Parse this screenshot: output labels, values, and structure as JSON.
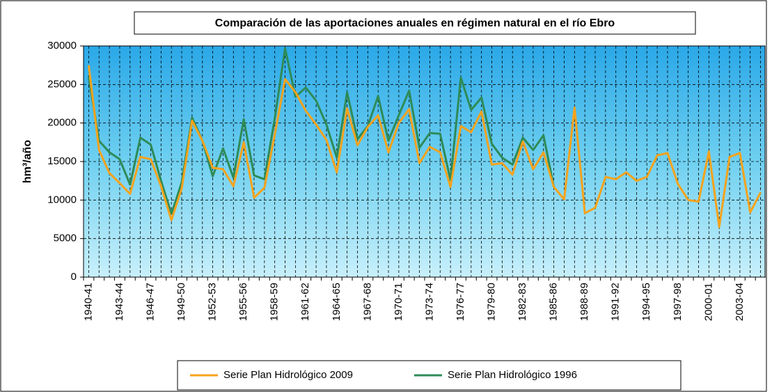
{
  "chart_data": {
    "type": "line",
    "title": "Comparación de las aportaciones anuales en régimen natural en el río Ebro",
    "y_label": "hm³/año",
    "categories": [
      "1940-41",
      null,
      null,
      "1943-44",
      null,
      null,
      "1946-47",
      null,
      null,
      "1949-50",
      null,
      null,
      "1952-53",
      null,
      null,
      "1955-56",
      null,
      null,
      "1958-59",
      null,
      null,
      "1961-62",
      null,
      null,
      "1964-65",
      null,
      null,
      "1967-68",
      null,
      null,
      "1970-71",
      null,
      null,
      "1973-74",
      null,
      null,
      "1976-77",
      null,
      null,
      "1979-80",
      null,
      null,
      "1982-83",
      null,
      null,
      "1985-86",
      null,
      null,
      "1988-89",
      null,
      null,
      "1991-92",
      null,
      null,
      "1994-95",
      null,
      null,
      "1997-98",
      null,
      null,
      "2000-01",
      null,
      null,
      "2003-04",
      null,
      null
    ],
    "series": [
      {
        "name": "Serie Plan Hidrológico 2009",
        "color": "#f7a21b",
        "values": [
          27500,
          16500,
          13500,
          12200,
          10800,
          15600,
          15300,
          11800,
          7400,
          11500,
          20300,
          17700,
          14200,
          14000,
          11800,
          17500,
          10300,
          11600,
          18500,
          25700,
          24000,
          21600,
          19800,
          17800,
          13600,
          21900,
          17100,
          19500,
          21000,
          16200,
          20000,
          21800,
          14800,
          16900,
          16200,
          11700,
          19600,
          18800,
          21500,
          14600,
          14800,
          13300,
          17600,
          14000,
          16200,
          11700,
          10100,
          22000,
          8300,
          9000,
          13000,
          12700,
          13600,
          12500,
          13000,
          15800,
          16100,
          12100,
          10000,
          9800,
          16300,
          6500,
          15600,
          16100,
          8400,
          11000
        ]
      },
      {
        "name": "Serie Plan Hidrológico 1996",
        "color": "#2e8b57",
        "values": [
          26000,
          17700,
          16200,
          15300,
          12000,
          18100,
          17200,
          12500,
          8200,
          12300,
          20700,
          17700,
          13100,
          16700,
          12900,
          20500,
          13200,
          12700,
          20600,
          29700,
          23400,
          24600,
          22900,
          19800,
          15500,
          24000,
          17900,
          19600,
          23500,
          17700,
          21000,
          24200,
          16800,
          18700,
          18600,
          12600,
          25900,
          21700,
          23300,
          17300,
          15500,
          14600,
          18100,
          16500,
          18400,
          11700,
          null,
          null,
          null,
          null,
          null,
          null,
          null,
          null,
          null,
          null,
          null,
          null,
          null,
          null,
          null,
          null,
          null,
          null,
          null,
          null
        ]
      }
    ],
    "ylim": [
      0,
      30000
    ],
    "yticks": [
      0,
      5000,
      10000,
      15000,
      20000,
      25000,
      30000
    ],
    "grid": true,
    "legend": "bottom"
  }
}
